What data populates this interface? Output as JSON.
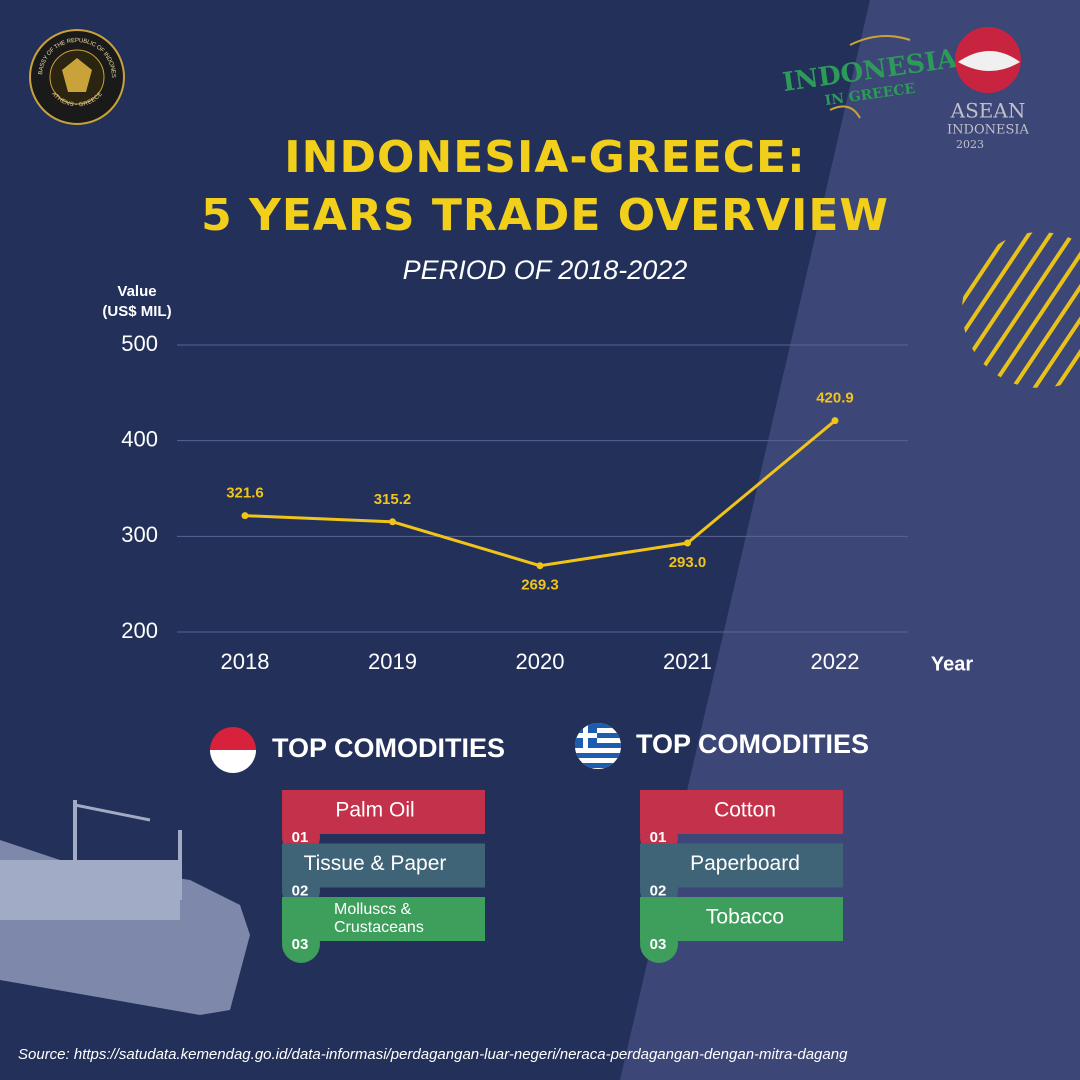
{
  "chart_data": {
    "type": "line",
    "title": [
      "INDONESIA-GREECE:",
      "5 YEARS TRADE OVERVIEW"
    ],
    "subtitle": "PERIOD OF 2018-2022",
    "ylabel": [
      "Value",
      "(US$ MIL)"
    ],
    "xlabel": "Year",
    "categories": [
      "2018",
      "2019",
      "2020",
      "2021",
      "2022"
    ],
    "values": [
      321.6,
      315.2,
      269.3,
      293.0,
      420.9
    ],
    "value_labels": [
      "321.6",
      "315.2",
      "269.3",
      "293.0",
      "420.9"
    ],
    "color": "#f0c419",
    "ylim": [
      200,
      500
    ],
    "yticks": [
      200,
      300,
      400,
      500
    ],
    "grid": true
  },
  "commodities": [
    {
      "title": "TOP COMODITIES",
      "items": [
        {
          "rank": "01",
          "name": "Palm Oil"
        },
        {
          "rank": "02",
          "name": "Tissue & Paper"
        },
        {
          "rank": "03",
          "name": [
            "Molluscs &",
            "Crustaceans"
          ]
        }
      ]
    },
    {
      "title": "TOP COMODITIES",
      "items": [
        {
          "rank": "01",
          "name": "Cotton"
        },
        {
          "rank": "02",
          "name": "Paperboard"
        },
        {
          "rank": "03",
          "name": "Tobacco"
        }
      ]
    }
  ],
  "logos": {
    "embassy": "EMBASSY OF THE REPUBLIC OF INDONESIA",
    "embassy_city": "ATHENS - GREECE",
    "event": "INDONESIA",
    "event_sub": "IN GREECE",
    "asean": "ASEAN",
    "asean_sub": "INDONESIA",
    "asean_year": "2023"
  },
  "source": "Source: https://satudata.kemendag.go.id/data-informasi/perdagangan-luar-negeri/neraca-perdagangan-dengan-mitra-dagang"
}
